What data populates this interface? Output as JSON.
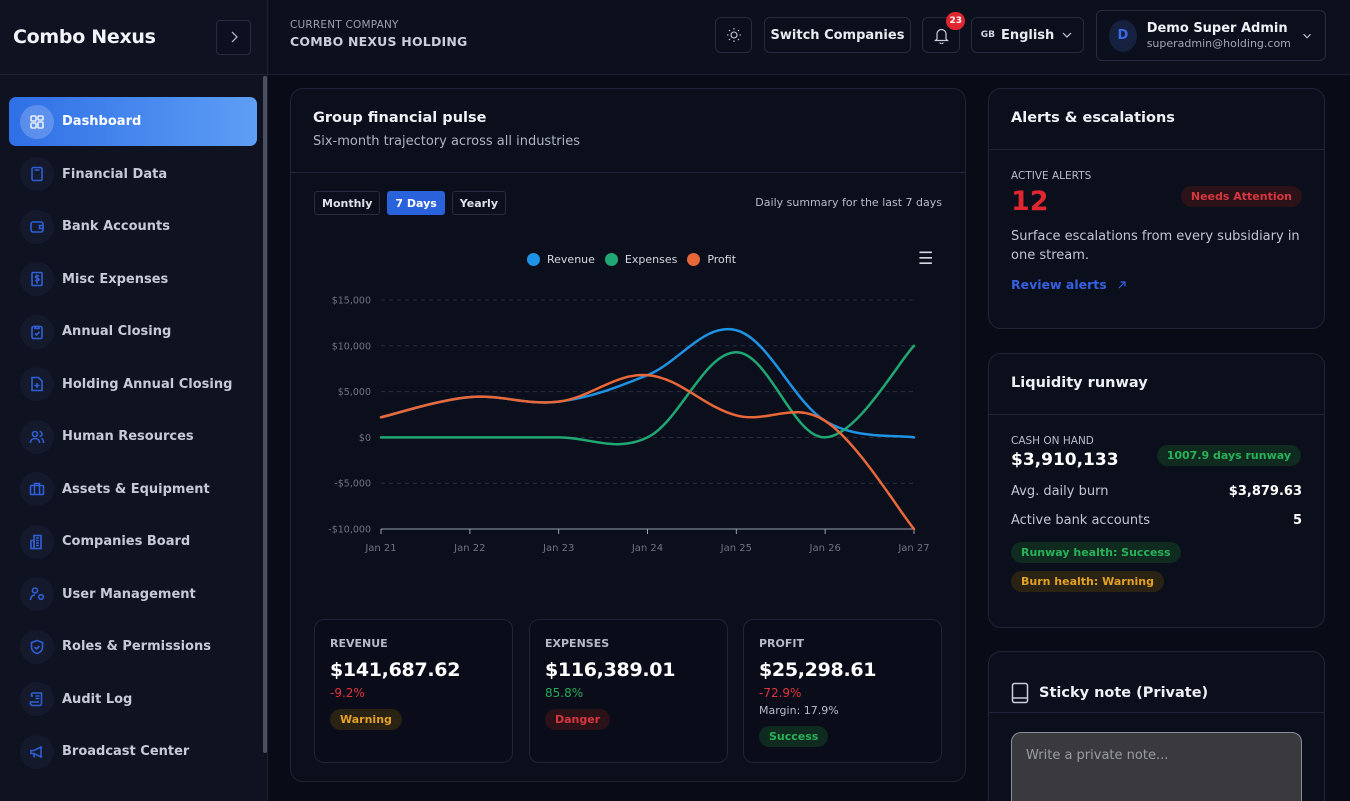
{
  "sidebar": {
    "brand": "Combo Nexus",
    "collapse_icon": "chevron-right-icon",
    "items": [
      {
        "label": "Dashboard",
        "icon": "grid-icon",
        "active": true
      },
      {
        "label": "Financial Data",
        "icon": "calculator-icon"
      },
      {
        "label": "Bank Accounts",
        "icon": "wallet-icon"
      },
      {
        "label": "Misc Expenses",
        "icon": "receipt-dollar-icon"
      },
      {
        "label": "Annual Closing",
        "icon": "clipboard-check-icon"
      },
      {
        "label": "Holding Annual Closing",
        "icon": "file-plus-icon"
      },
      {
        "label": "Human Resources",
        "icon": "users-icon"
      },
      {
        "label": "Assets & Equipment",
        "icon": "briefcase-icon"
      },
      {
        "label": "Companies Board",
        "icon": "building-icon"
      },
      {
        "label": "User Management",
        "icon": "user-settings-icon"
      },
      {
        "label": "Roles & Permissions",
        "icon": "shield-check-icon"
      },
      {
        "label": "Audit Log",
        "icon": "scroll-icon"
      },
      {
        "label": "Broadcast Center",
        "icon": "megaphone-icon"
      }
    ]
  },
  "topbar": {
    "company_label": "CURRENT COMPANY",
    "company_name": "COMBO NEXUS HOLDING",
    "switch_label": "Switch Companies",
    "notifications_count": "23",
    "language_code": "GB",
    "language": "English",
    "user": {
      "initial": "D",
      "name": "Demo Super Admin",
      "email": "superadmin@holding.com"
    }
  },
  "pulse": {
    "title": "Group financial pulse",
    "subtitle": "Six-month trajectory across all industries",
    "tabs": [
      {
        "label": "Monthly",
        "active": false
      },
      {
        "label": "7 Days",
        "active": true
      },
      {
        "label": "Yearly",
        "active": false
      }
    ],
    "summary": "Daily summary for the last 7 days",
    "stats": [
      {
        "label": "REVENUE",
        "value": "$141,687.62",
        "change": "-9.2%",
        "change_tone": "red",
        "badge": "Warning",
        "badge_tone": "warn"
      },
      {
        "label": "EXPENSES",
        "value": "$116,389.01",
        "change": "85.8%",
        "change_tone": "green",
        "badge": "Danger",
        "badge_tone": "danger"
      },
      {
        "label": "PROFIT",
        "value": "$25,298.61",
        "change": "-72.9%",
        "change_tone": "red",
        "margin": "Margin: 17.9%",
        "badge": "Success",
        "badge_tone": "success"
      }
    ]
  },
  "chart_data": {
    "type": "line",
    "title": "",
    "xlabel": "",
    "ylabel": "",
    "x": [
      "Jan 21",
      "Jan 22",
      "Jan 23",
      "Jan 24",
      "Jan 25",
      "Jan 26",
      "Jan 27"
    ],
    "ylim": [
      -10000,
      15000
    ],
    "yticks": [
      15000,
      10000,
      5000,
      0,
      -5000,
      -10000
    ],
    "ytick_labels": [
      "$15,000",
      "$10,000",
      "$5,000",
      "$0",
      "-$5,000",
      "-$10,000"
    ],
    "grid": true,
    "legend_position": "top-center",
    "series": [
      {
        "name": "Revenue",
        "color": "#1e93e6",
        "values": [
          2200,
          4400,
          3900,
          6800,
          11700,
          1800,
          0
        ]
      },
      {
        "name": "Expenses",
        "color": "#1fa874",
        "values": [
          0,
          0,
          0,
          0,
          9300,
          0,
          10000
        ]
      },
      {
        "name": "Profit",
        "color": "#e8683a",
        "values": [
          2200,
          4400,
          3900,
          6800,
          2400,
          1800,
          -10000
        ]
      }
    ]
  },
  "alerts": {
    "title": "Alerts & escalations",
    "label": "ACTIVE ALERTS",
    "count": "12",
    "badge": "Needs Attention",
    "description": "Surface escalations from every subsidiary in one stream.",
    "link": "Review alerts"
  },
  "liquidity": {
    "title": "Liquidity runway",
    "cash_label": "CASH ON HAND",
    "cash_value": "$3,910,133",
    "runway_badge": "1007.9 days runway",
    "rows": [
      {
        "label": "Avg. daily burn",
        "value": "$3,879.63"
      },
      {
        "label": "Active bank accounts",
        "value": "5"
      }
    ],
    "runway_health": "Runway health: Success",
    "burn_health": "Burn health: Warning"
  },
  "sticky": {
    "title": "Sticky note (Private)",
    "placeholder": "Write a private note...",
    "value": ""
  }
}
